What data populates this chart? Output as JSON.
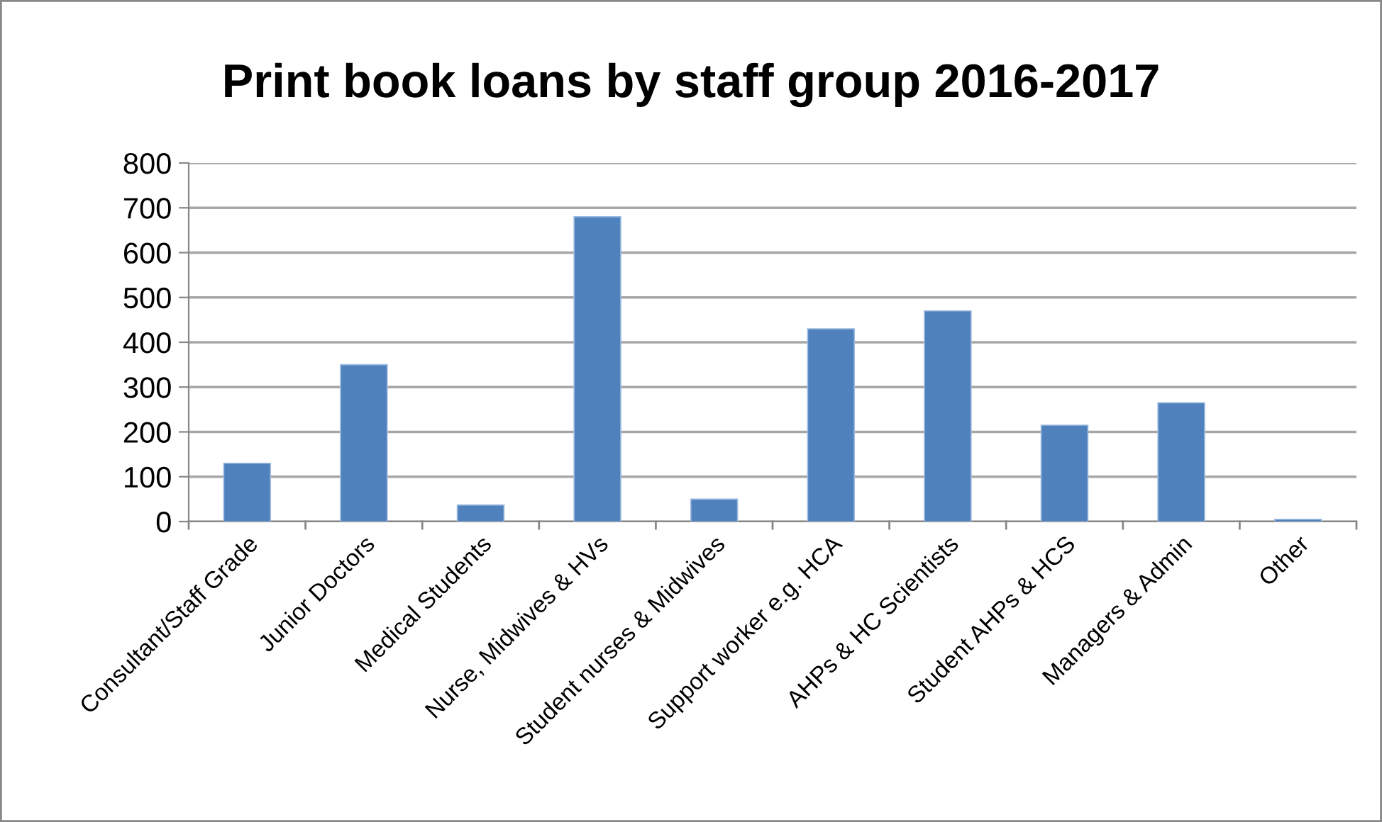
{
  "chart_data": {
    "type": "bar",
    "title": "Print book loans by staff group 2016-2017",
    "categories": [
      "Consultant/Staff Grade",
      "Junior Doctors",
      "Medical Students",
      "Nurse, Midwives & HVs",
      "Student nurses & Midwives",
      "Support worker e.g. HCA",
      "AHPs & HC Scientists",
      "Student AHPs & HCS",
      "Managers & Admin",
      "Other"
    ],
    "values": [
      130,
      350,
      37,
      680,
      50,
      430,
      470,
      215,
      265,
      5
    ],
    "color": "#4f81bd",
    "ylim": [
      0,
      800
    ],
    "yticks": [
      0,
      100,
      200,
      300,
      400,
      500,
      600,
      700,
      800
    ],
    "grid": "y",
    "legend": false
  }
}
